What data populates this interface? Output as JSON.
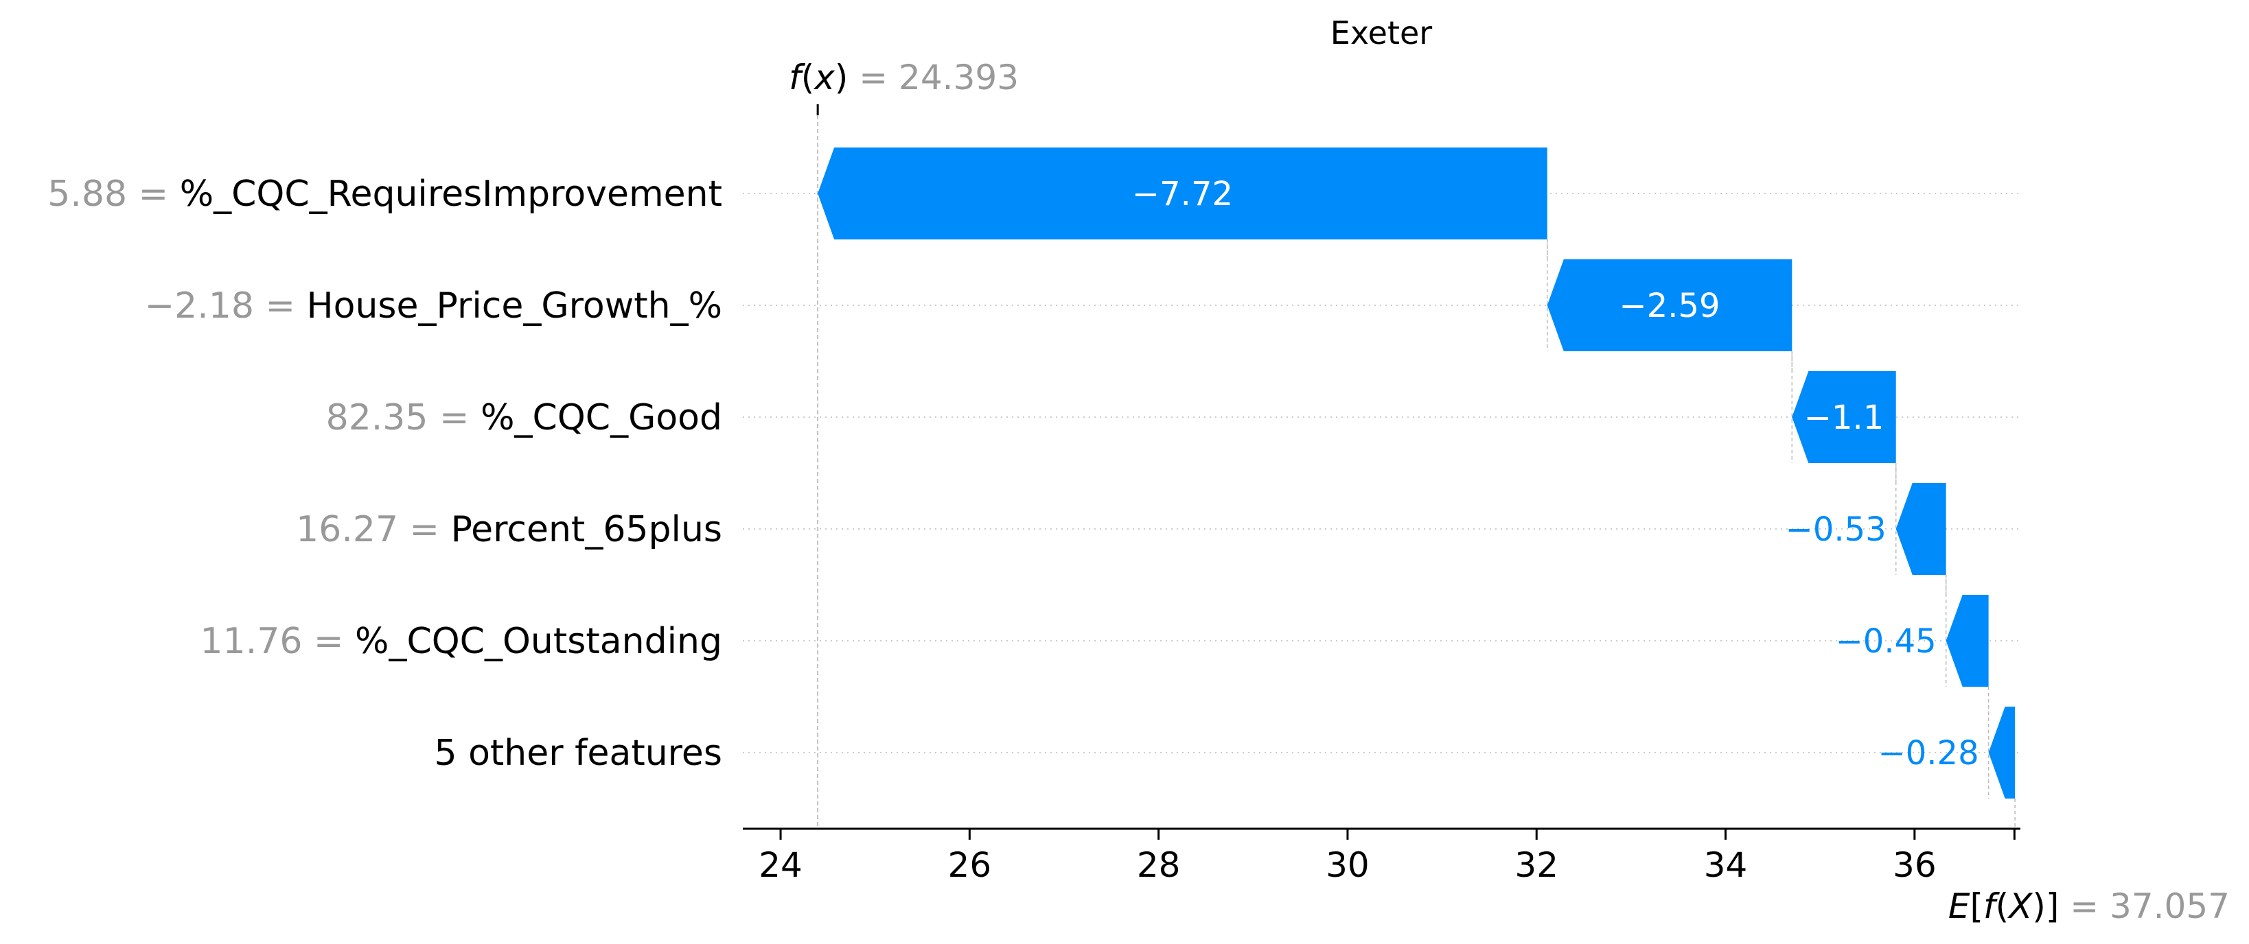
{
  "chart_data": {
    "type": "waterfall",
    "title": "Exeter",
    "features": [
      {
        "value_text": "5.88",
        "name": "%_CQC_RequiresImprovement",
        "shap": -7.72,
        "label": "−7.72"
      },
      {
        "value_text": "−2.18",
        "name": "House_Price_Growth_%",
        "shap": -2.59,
        "label": "−2.59"
      },
      {
        "value_text": "82.35",
        "name": "%_CQC_Good",
        "shap": -1.1,
        "label": "−1.1"
      },
      {
        "value_text": "16.27",
        "name": "Percent_65plus",
        "shap": -0.53,
        "label": "−0.53"
      },
      {
        "value_text": "11.76",
        "name": "%_CQC_Outstanding",
        "shap": -0.45,
        "label": "−0.45"
      },
      {
        "value_text": "",
        "name": "5 other features",
        "shap": -0.28,
        "label": "−0.28"
      }
    ],
    "fx": {
      "label": "f(x)",
      "value": 24.393,
      "value_text": "24.393"
    },
    "base": {
      "label": "E[f(X)]",
      "value": 37.057,
      "value_text": "37.057"
    },
    "xlim": [
      23.6,
      37.12
    ],
    "xticks": [
      24,
      26,
      28,
      30,
      32,
      34,
      36
    ],
    "colors": {
      "negative": "#008bfb",
      "value_text": "#999999",
      "grid": "#cccccc"
    }
  }
}
